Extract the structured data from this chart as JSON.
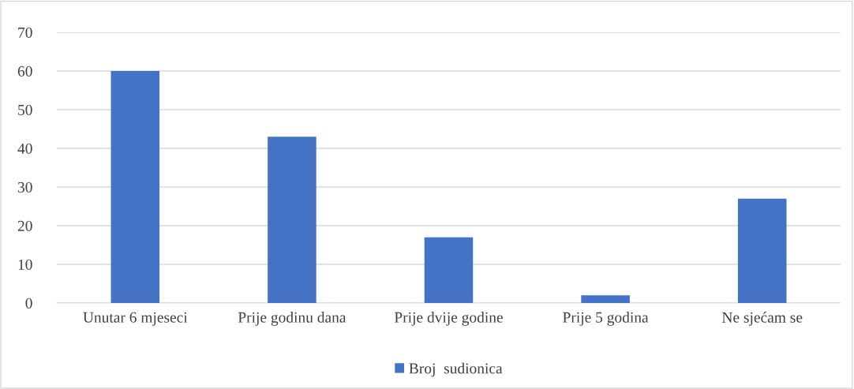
{
  "chart_data": {
    "type": "bar",
    "categories": [
      "Unutar 6 mjeseci",
      "Prije godinu dana",
      "Prije dvije godine",
      "Prije 5 godina",
      "Ne sjećam se"
    ],
    "series": [
      {
        "name": "Broj  sudionica",
        "color": "#4472c4",
        "values": [
          60,
          43,
          17,
          2,
          27
        ]
      }
    ],
    "ylim": [
      0,
      70
    ],
    "yticks": [
      0,
      10,
      20,
      30,
      40,
      50,
      60,
      70
    ],
    "grid": "y",
    "legend": "bottom"
  }
}
